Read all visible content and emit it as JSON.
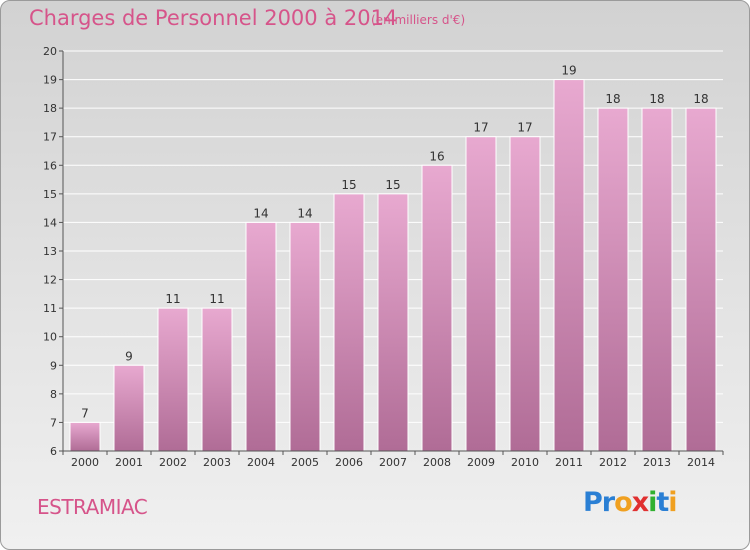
{
  "chart_data": {
    "type": "bar",
    "title": "Charges de Personnel 2000 à 2014",
    "unit_label": "(en milliers d'€)",
    "categories": [
      "2000",
      "2001",
      "2002",
      "2003",
      "2004",
      "2005",
      "2006",
      "2007",
      "2008",
      "2009",
      "2010",
      "2011",
      "2012",
      "2013",
      "2014"
    ],
    "values": [
      7,
      9,
      11,
      11,
      14,
      14,
      15,
      15,
      16,
      17,
      17,
      19,
      18,
      18,
      18
    ],
    "ylim": [
      6,
      20
    ],
    "yticks": [
      6,
      7,
      8,
      9,
      10,
      11,
      12,
      13,
      14,
      15,
      16,
      17,
      18,
      19,
      20
    ],
    "xlabel": "",
    "ylabel": "",
    "bar_color_top": "#e8a9d0",
    "bar_color_bottom": "#b06c96"
  },
  "footer": {
    "commune": "ESTRAMIAC",
    "logo_letters": [
      {
        "ch": "P",
        "color": "#2a7fd4"
      },
      {
        "ch": "r",
        "color": "#2a7fd4"
      },
      {
        "ch": "o",
        "color": "#f0a020"
      },
      {
        "ch": "x",
        "color": "#e03030"
      },
      {
        "ch": "i",
        "color": "#30b030"
      },
      {
        "ch": "t",
        "color": "#2a7fd4"
      },
      {
        "ch": "i",
        "color": "#f0a020"
      }
    ]
  }
}
